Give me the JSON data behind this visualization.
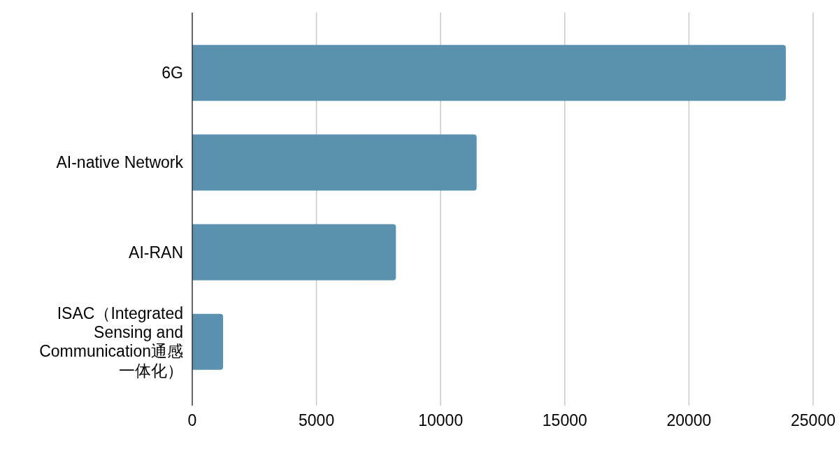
{
  "chart_data": {
    "type": "bar",
    "orientation": "horizontal",
    "categories": [
      "6G",
      "AI-native Network",
      "AI-RAN",
      "ISAC（Integrated Sensing and Communication通感一体化）"
    ],
    "values": [
      23900,
      11450,
      8200,
      1240
    ],
    "color": "#5991af",
    "xlim": [
      0,
      25000
    ],
    "xticks": [
      0,
      5000,
      10000,
      15000,
      20000,
      25000
    ],
    "grid": "x"
  }
}
